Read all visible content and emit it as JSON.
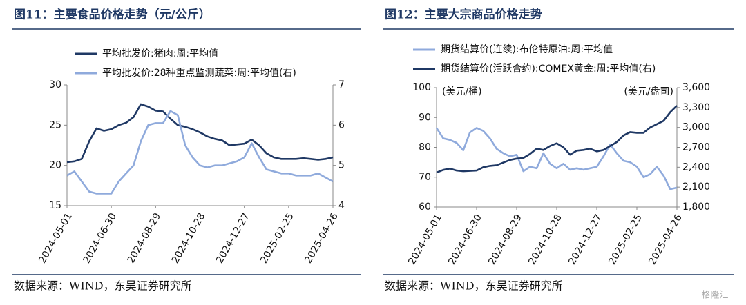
{
  "chart_data": [
    {
      "type": "line",
      "title": "图11：主要食品价格走势（元/公斤）",
      "x": [
        "2024-05-01",
        "2024-05-11",
        "2024-05-21",
        "2024-05-31",
        "2024-06-10",
        "2024-06-20",
        "2024-06-30",
        "2024-07-10",
        "2024-07-20",
        "2024-07-30",
        "2024-08-09",
        "2024-08-19",
        "2024-08-29",
        "2024-09-08",
        "2024-09-18",
        "2024-09-28",
        "2024-10-08",
        "2024-10-18",
        "2024-10-28",
        "2024-11-07",
        "2024-11-17",
        "2024-11-27",
        "2024-12-07",
        "2024-12-17",
        "2024-12-27",
        "2025-01-06",
        "2025-01-16",
        "2025-01-26",
        "2025-02-05",
        "2025-02-15",
        "2025-02-25",
        "2025-03-07",
        "2025-03-17",
        "2025-03-27",
        "2025-04-06",
        "2025-04-16",
        "2025-04-26"
      ],
      "series": [
        {
          "name": "平均批发价:猪肉:周:平均值",
          "color": "#1f3864",
          "values": [
            20.4,
            20.5,
            20.8,
            23,
            24.6,
            24.3,
            24.5,
            25,
            25.3,
            26,
            27.6,
            27.3,
            26.8,
            26.7,
            25.8,
            25,
            24.8,
            24.5,
            24.1,
            23.6,
            23.3,
            23.1,
            22.5,
            22.6,
            22.7,
            23.2,
            22.5,
            21.5,
            21,
            20.8,
            20.8,
            20.8,
            20.9,
            20.8,
            20.7,
            20.8,
            21
          ]
        },
        {
          "name": "平均批发价:28种重点监测蔬菜:周:平均值(右)",
          "color": "#8faadc",
          "axis": "y2",
          "values": [
            4.75,
            4.85,
            4.6,
            4.35,
            4.3,
            4.3,
            4.3,
            4.6,
            4.8,
            5.0,
            5.6,
            6.0,
            6.05,
            6.05,
            6.35,
            6.25,
            5.5,
            5.2,
            5.0,
            4.95,
            5.0,
            5.0,
            5.05,
            5.1,
            5.2,
            5.55,
            5.2,
            4.9,
            4.85,
            4.8,
            4.8,
            4.75,
            4.75,
            4.75,
            4.8,
            4.7,
            4.6
          ]
        }
      ],
      "xlim": [
        "2024-05-01",
        "2025-04-26"
      ],
      "xticks": [
        "2024-05-01",
        "2024-06-30",
        "2024-08-29",
        "2024-10-28",
        "2024-12-27",
        "2025-02-25",
        "2025-04-26"
      ],
      "ylim": [
        15,
        30
      ],
      "yticks": [
        15,
        20,
        25,
        30
      ],
      "y2lim": [
        4,
        7
      ],
      "y2ticks": [
        4,
        5,
        6,
        7
      ],
      "source": "数据来源：WIND，东吴证券研究所"
    },
    {
      "type": "line",
      "title": "图12：主要大宗商品价格走势",
      "annotations": [
        "(美元/桶)",
        "(美元/盘司)"
      ],
      "x": [
        "2024-05-01",
        "2024-05-11",
        "2024-05-21",
        "2024-05-31",
        "2024-06-10",
        "2024-06-20",
        "2024-06-30",
        "2024-07-10",
        "2024-07-20",
        "2024-07-30",
        "2024-08-09",
        "2024-08-19",
        "2024-08-29",
        "2024-09-08",
        "2024-09-18",
        "2024-09-28",
        "2024-10-08",
        "2024-10-18",
        "2024-10-28",
        "2024-11-07",
        "2024-11-17",
        "2024-11-27",
        "2024-12-07",
        "2024-12-17",
        "2024-12-27",
        "2025-01-06",
        "2025-01-16",
        "2025-01-26",
        "2025-02-05",
        "2025-02-15",
        "2025-02-25",
        "2025-03-07",
        "2025-03-17",
        "2025-03-27",
        "2025-04-06",
        "2025-04-16",
        "2025-04-26"
      ],
      "series": [
        {
          "name": "期货结算价(连续):布伦特原油:周:平均值",
          "color": "#8faadc",
          "values": [
            86.5,
            83,
            82.5,
            81.5,
            79,
            85,
            86.5,
            85.5,
            83,
            79.5,
            78,
            77,
            77.5,
            72,
            73.5,
            73,
            78,
            74.5,
            73,
            74.5,
            72.5,
            73,
            72.5,
            73,
            73.5,
            77,
            81,
            78,
            75.5,
            75,
            73.5,
            70,
            71,
            73.5,
            70.5,
            66,
            66.5
          ]
        },
        {
          "name": "期货结算价(活跃合约):COMEX黄金:周:平均值(右)",
          "color": "#1f3864",
          "axis": "y2",
          "values": [
            2320,
            2360,
            2380,
            2350,
            2340,
            2345,
            2350,
            2400,
            2420,
            2430,
            2470,
            2510,
            2530,
            2540,
            2600,
            2680,
            2660,
            2720,
            2760,
            2700,
            2590,
            2650,
            2660,
            2680,
            2640,
            2660,
            2720,
            2780,
            2880,
            2930,
            2920,
            2920,
            3000,
            3050,
            3100,
            3230,
            3330
          ]
        }
      ],
      "xlim": [
        "2024-05-01",
        "2025-04-26"
      ],
      "xticks": [
        "2024-05-01",
        "2024-06-30",
        "2024-08-29",
        "2024-10-28",
        "2024-12-27",
        "2025-02-25",
        "2025-04-26"
      ],
      "ylim": [
        60,
        100
      ],
      "yticks": [
        60,
        70,
        80,
        90,
        100
      ],
      "y2lim": [
        1800,
        3600
      ],
      "y2ticks": [
        {
          "value": 1800,
          "label": "1,800"
        },
        {
          "value": 2100,
          "label": "2,100"
        },
        {
          "value": 2400,
          "label": "2,400"
        },
        {
          "value": 2700,
          "label": "2,700"
        },
        {
          "value": 3000,
          "label": "3,000"
        },
        {
          "value": 3300,
          "label": "3,300"
        },
        {
          "value": 3600,
          "label": "3,600"
        }
      ],
      "source": "数据来源：WIND，东吴证券研究所"
    }
  ],
  "watermark": "格隆汇"
}
